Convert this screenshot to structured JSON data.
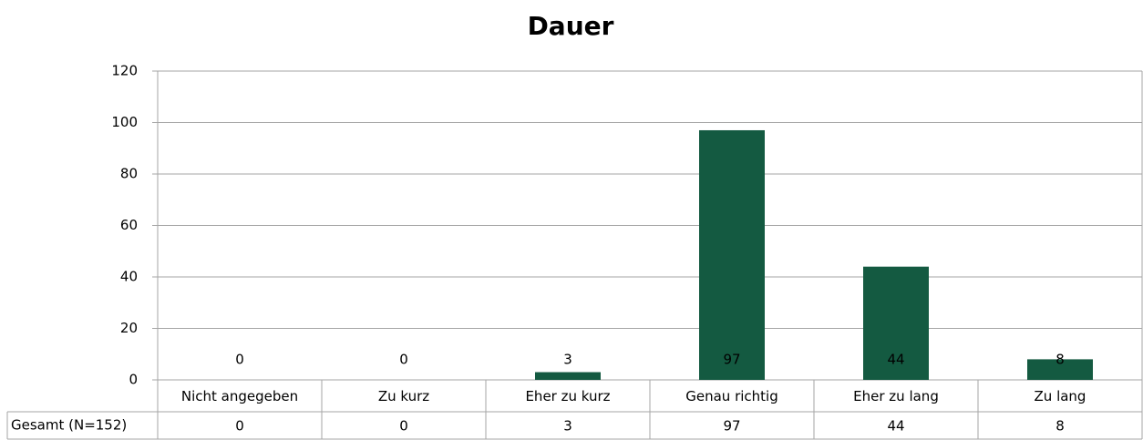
{
  "chart_data": {
    "type": "bar",
    "title": "Dauer",
    "categories": [
      "Nicht angegeben",
      "Zu kurz",
      "Eher zu kurz",
      "Genau richtig",
      "Eher zu lang",
      "Zu lang"
    ],
    "series": [
      {
        "name": "Gesamt (N=152)",
        "color": "#145a41",
        "values": [
          0,
          0,
          3,
          97,
          44,
          8
        ]
      }
    ],
    "ylim": [
      0,
      120
    ],
    "yticks": [
      0,
      20,
      40,
      60,
      80,
      100,
      120
    ],
    "grid": true
  }
}
